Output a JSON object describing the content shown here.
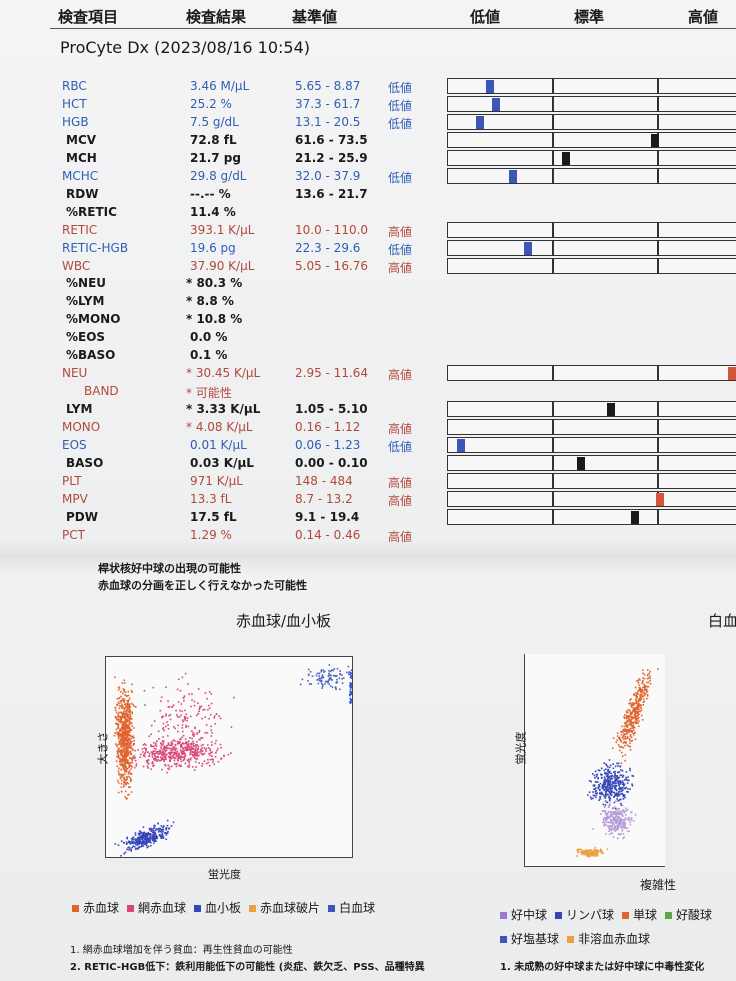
{
  "header": {
    "columns": [
      "検査項目",
      "検査結果",
      "基準値",
      "低値",
      "標準",
      "高値"
    ],
    "instrument": "ProCyte Dx (2023/08/16 10:54)"
  },
  "rows": [
    {
      "item": "RBC",
      "result": "3.46 M/μL",
      "range": "5.65 - 8.87",
      "flag": "低値"
    },
    {
      "item": "HCT",
      "result": "25.2 %",
      "range": "37.3 - 61.7",
      "flag": "低値"
    },
    {
      "item": "HGB",
      "result": "7.5 g/dL",
      "range": "13.1 - 20.5",
      "flag": "低値"
    },
    {
      "item": "MCV",
      "result": "72.8 fL",
      "range": "61.6 - 73.5"
    },
    {
      "item": "MCH",
      "result": "21.7 pg",
      "range": "21.2 - 25.9"
    },
    {
      "item": "MCHC",
      "result": "29.8 g/dL",
      "range": "32.0 - 37.9",
      "flag": "低値"
    },
    {
      "item": "RDW",
      "result": "--.-- %",
      "range": "13.6 - 21.7"
    },
    {
      "item": "%RETIC",
      "result": "11.4 %"
    },
    {
      "item": "RETIC",
      "result": "393.1 K/μL",
      "range": "10.0 - 110.0",
      "flag": "高値"
    },
    {
      "item": "RETIC-HGB",
      "result": "19.6 pg",
      "range": "22.3 - 29.6",
      "flag": "低値"
    },
    {
      "item": "WBC",
      "result": "37.90 K/μL",
      "range": "5.05 - 16.76",
      "flag": "高値"
    },
    {
      "item": "%NEU",
      "result": "* 80.3 %"
    },
    {
      "item": "%LYM",
      "result": "* 8.8 %"
    },
    {
      "item": "%MONO",
      "result": "* 10.8 %"
    },
    {
      "item": "%EOS",
      "result": "0.0 %"
    },
    {
      "item": "%BASO",
      "result": "0.1 %"
    },
    {
      "item": "NEU",
      "result": "* 30.45 K/μL",
      "range": "2.95 - 11.64",
      "flag": "高値"
    },
    {
      "item": "BAND",
      "result": "* 可能性"
    },
    {
      "item": "LYM",
      "result": "* 3.33 K/μL",
      "range": "1.05 - 5.10"
    },
    {
      "item": "MONO",
      "result": "* 4.08 K/μL",
      "range": "0.16 - 1.12",
      "flag": "高値"
    },
    {
      "item": "EOS",
      "result": "0.01 K/μL",
      "range": "0.06 - 1.23",
      "flag": "低値"
    },
    {
      "item": "BASO",
      "result": "0.03 K/μL",
      "range": "0.00 - 0.10"
    },
    {
      "item": "PLT",
      "result": "971 K/μL",
      "range": "148 - 484",
      "flag": "高値"
    },
    {
      "item": "MPV",
      "result": "13.3 fL",
      "range": "8.7 - 13.2",
      "flag": "高値"
    },
    {
      "item": "PDW",
      "result": "17.5 fL",
      "range": "9.1 - 19.4"
    },
    {
      "item": "PCT",
      "result": "1.29 %",
      "range": "0.14 - 0.46",
      "flag": "高値"
    }
  ],
  "notes": [
    "桿状核好中球の出現の可能性",
    "赤血球の分画を正しく行えなかった可能性"
  ],
  "plots": [
    {
      "title": "赤血球/血小板",
      "y_label": "大きさ",
      "x_label": "蛍光度",
      "legend": [
        "赤血球",
        "網赤血球",
        "血小板",
        "赤血球破片",
        "白血球"
      ],
      "footnotes": [
        "1. 網赤血球増加を伴う貧血：再生性貧血の可能性",
        "2. RETIC-HGB低下：鉄利用能低下の可能性 (炎症、鉄欠乏、PSS、品種特異"
      ]
    },
    {
      "title": "白血",
      "y_label": "蛍光度",
      "x_label": "複雑性",
      "legend": [
        "好中球",
        "リンパ球",
        "単球",
        "好酸球",
        "好塩基球",
        "非溶血赤血球"
      ],
      "footnotes": [
        "1. 未成熟の好中球または好中球に中毒性変化"
      ]
    }
  ]
}
